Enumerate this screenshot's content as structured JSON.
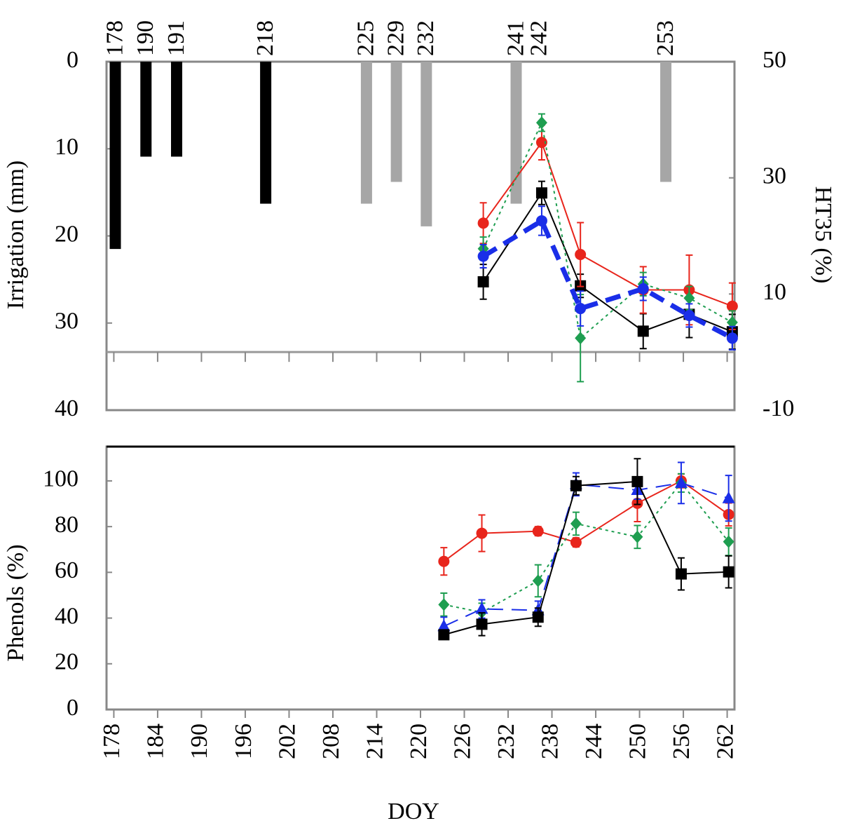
{
  "chart_data": [
    {
      "type": "combo",
      "ylabel": "Irrigation (mm)",
      "y2label": "HT35 (%)",
      "ylim": [
        40,
        0
      ],
      "yticks": [
        0,
        10,
        20,
        30,
        40
      ],
      "y2lim": [
        -10,
        50
      ],
      "y2ticks": [
        50,
        30,
        10,
        -10
      ],
      "xlim": [
        177,
        263
      ],
      "bar_labels": [
        "178",
        "190",
        "191",
        "218",
        "225",
        "229",
        "232",
        "241",
        "242",
        "253"
      ],
      "bar_x": [
        178.2,
        182.4,
        186.6,
        198.8,
        212.6,
        216.7,
        220.8,
        233.1,
        236.3,
        253.6
      ],
      "bar_values": [
        21.5,
        10.9,
        10.9,
        16.3,
        16.3,
        13.8,
        18.9,
        16.3,
        null,
        13.8
      ],
      "bar_colors": [
        "#000000",
        "#000000",
        "#000000",
        "#000000",
        "#a6a6a6",
        "#a6a6a6",
        "#a6a6a6",
        "#a6a6a6",
        "#a6a6a6",
        "#a6a6a6"
      ],
      "reference_line_y2": 0,
      "series": [
        {
          "color": "#000000",
          "marker": "square",
          "dash": "solid",
          "width": 2,
          "axis": "y2",
          "x": [
            228.6,
            236.6,
            241.9,
            250.5,
            256.8,
            262.7
          ],
          "values": [
            12.1,
            27.4,
            11.4,
            3.6,
            6.5,
            3.5
          ],
          "errors": [
            3,
            2,
            2,
            3,
            4,
            3
          ]
        },
        {
          "color": "#e8251c",
          "marker": "circle",
          "dash": "solid",
          "width": 2,
          "axis": "y2",
          "x": [
            228.6,
            236.6,
            241.9,
            250.5,
            256.8,
            262.7
          ],
          "values": [
            22.2,
            36.1,
            16.8,
            10.7,
            10.7,
            7.9
          ],
          "errors": [
            3.5,
            3,
            5.5,
            4,
            6,
            4
          ]
        },
        {
          "color": "#1e9e50",
          "marker": "diamond",
          "dash": "dotted",
          "width": 2,
          "axis": "y2",
          "x": [
            228.6,
            236.6,
            241.9,
            250.5,
            256.8,
            262.7
          ],
          "values": [
            17.8,
            39.5,
            2.4,
            11.7,
            9.3,
            5.1
          ],
          "errors": [
            2,
            1.5,
            7.5,
            2,
            2,
            2
          ]
        },
        {
          "color": "#1a2ee8",
          "marker": "circle",
          "dash": "dashed",
          "width": 7,
          "axis": "y2",
          "x": [
            228.6,
            236.6,
            241.9,
            250.5,
            256.8,
            262.7
          ],
          "values": [
            16.5,
            22.6,
            7.5,
            10.9,
            6.3,
            2.4
          ],
          "errors": [
            2,
            2.5,
            3,
            2,
            2,
            2
          ]
        }
      ]
    },
    {
      "type": "line",
      "ylabel": "Phenols (%)",
      "xlabel": "DOY",
      "ylim": [
        0,
        115
      ],
      "yticks": [
        0,
        20,
        40,
        60,
        80,
        100
      ],
      "xlim": [
        177,
        263
      ],
      "xticks": [
        178,
        184,
        190,
        196,
        202,
        208,
        214,
        220,
        226,
        232,
        238,
        244,
        250,
        256,
        262
      ],
      "series": [
        {
          "color": "#e8251c",
          "marker": "circle",
          "dash": "solid",
          "width": 2,
          "x": [
            223.2,
            228.4,
            236.1,
            241.3,
            249.7,
            255.7,
            262.2
          ],
          "values": [
            64.8,
            77.1,
            78,
            73.1,
            90.2,
            100,
            85.3
          ],
          "errors": [
            6,
            8,
            2,
            2,
            8,
            3,
            5
          ]
        },
        {
          "color": "#1e9e50",
          "marker": "diamond",
          "dash": "dotted",
          "width": 2,
          "x": [
            223.2,
            228.4,
            236.1,
            241.3,
            249.7,
            255.7,
            262.2
          ],
          "values": [
            45.9,
            42.5,
            56.3,
            81.3,
            75.5,
            99.1,
            73.4
          ],
          "errors": [
            5,
            4,
            7,
            5,
            5,
            4,
            6
          ]
        },
        {
          "color": "#1a2ee8",
          "marker": "triangle",
          "dash": "dashed",
          "width": 2,
          "x": [
            223.2,
            228.4,
            236.1,
            241.3,
            249.7,
            255.7,
            262.2
          ],
          "values": [
            36.4,
            44,
            43.4,
            98.5,
            96,
            99.1,
            92.4
          ],
          "errors": [
            4,
            4,
            4,
            5,
            4,
            9,
            10
          ]
        },
        {
          "color": "#000000",
          "marker": "square",
          "dash": "solid",
          "width": 2,
          "x": [
            223.2,
            228.4,
            236.1,
            241.3,
            249.7,
            255.7,
            262.2
          ],
          "values": [
            32.7,
            37.3,
            40.4,
            97.9,
            99.7,
            59.3,
            60.2
          ],
          "errors": [
            2,
            5,
            4,
            4,
            10,
            7,
            7
          ]
        }
      ]
    }
  ]
}
